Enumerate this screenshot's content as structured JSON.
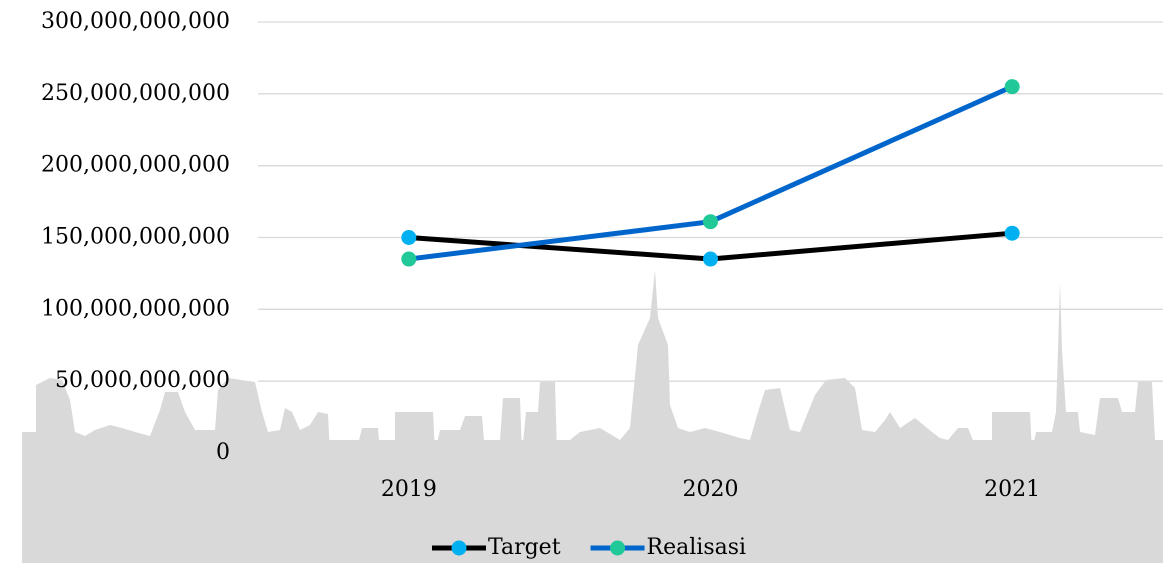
{
  "chart_data": {
    "type": "line",
    "categories": [
      "2019",
      "2020",
      "2021"
    ],
    "series": [
      {
        "name": "Target",
        "color": "#000000",
        "marker_color": "#00b0f0",
        "values": [
          150000000000,
          135000000000,
          153000000000
        ]
      },
      {
        "name": "Realisasi",
        "color": "#0066cc",
        "marker_color": "#20c997",
        "values": [
          135000000000,
          161000000000,
          255000000000
        ]
      }
    ],
    "ylim": [
      0,
      300000000000
    ],
    "yticks": [
      0,
      {
        "value": 50000000000,
        "label": "50,000,000,000"
      },
      {
        "value": 100000000000,
        "label": "100,000,000,000"
      },
      {
        "value": 150000000000,
        "label": "150,000,000,000"
      },
      {
        "value": 200000000000,
        "label": "200,000,000,000"
      },
      {
        "value": 250000000000,
        "label": "250,000,000,000"
      },
      {
        "value": 300000000000,
        "label": "300,000,000,000"
      }
    ],
    "grid": true,
    "legend": "bottom"
  }
}
